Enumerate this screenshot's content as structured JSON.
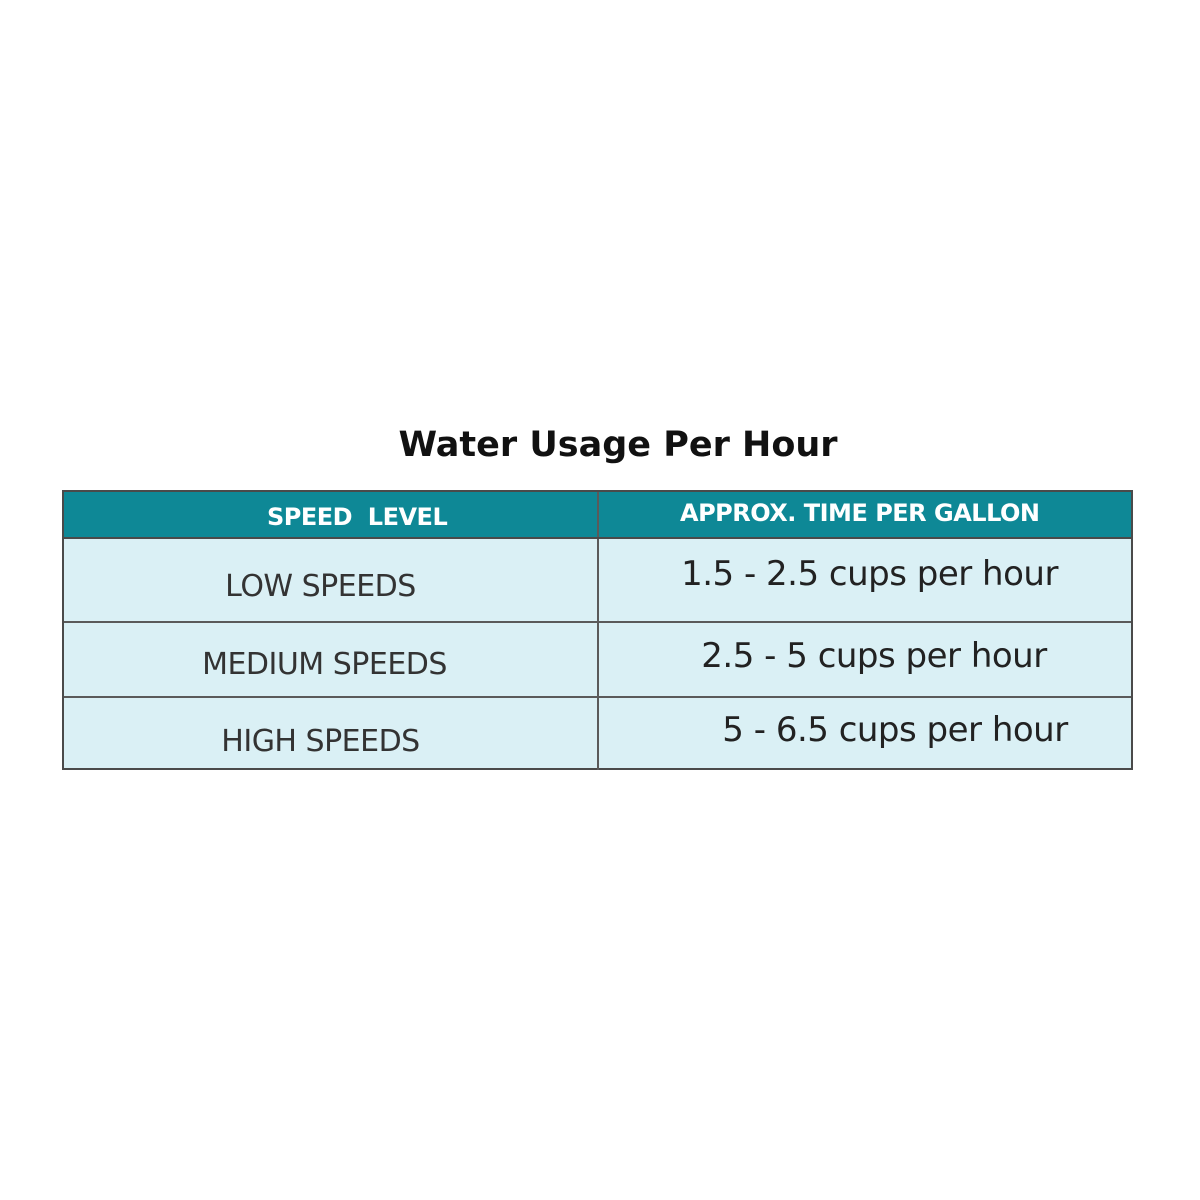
{
  "title": "Water Usage Per Hour",
  "table": {
    "headers": [
      "SPEED  LEVEL",
      "APPROX. TIME PER GALLON"
    ],
    "rows": [
      [
        "LOW SPEEDS",
        "1.5 - 2.5 cups per hour"
      ],
      [
        "MEDIUM SPEEDS",
        "2.5 - 5 cups per hour"
      ],
      [
        "HIGH SPEEDS",
        "5 - 6.5 cups per hour"
      ]
    ]
  },
  "colors": {
    "header_bg": "#0e8896",
    "header_text": "#ffffff",
    "row_bg": "#daf0f5",
    "border": "#4a4a4a"
  }
}
